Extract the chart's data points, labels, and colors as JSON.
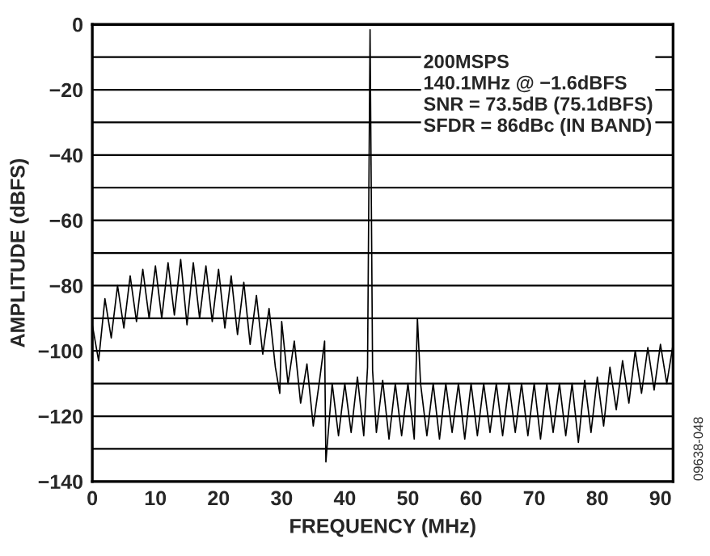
{
  "chart_data": {
    "type": "line",
    "xlabel": "FREQUENCY (MHz)",
    "ylabel": "AMPLITUDE (dBFS)",
    "annotations": [
      "200MSPS\n140.1MHz @ −1.6dBFS\nSNR = 73.5dB (75.1dBFS)\nSFDR = 86dBc (IN BAND)",
      "09638-048"
    ],
    "series": [
      {
        "color": "#000000",
        "x": [
          0,
          1,
          2,
          3,
          4,
          5,
          6,
          7,
          8,
          9,
          10,
          11,
          12,
          13,
          14,
          15,
          16,
          17,
          18,
          19,
          20,
          21,
          22,
          23,
          24,
          25,
          26,
          27,
          28,
          29,
          29.7,
          30,
          31,
          32,
          33,
          34,
          35,
          36,
          36.8,
          37,
          38,
          39,
          40,
          41,
          42,
          43,
          43.6,
          44,
          44.4,
          45,
          46,
          47,
          48,
          49,
          50,
          51,
          51.5,
          52,
          53,
          54,
          55,
          56,
          57,
          58,
          59,
          60,
          61,
          62,
          63,
          64,
          65,
          66,
          67,
          68,
          69,
          70,
          71,
          72,
          73,
          74,
          75,
          76,
          77,
          78,
          79,
          80,
          81,
          82,
          83,
          84,
          85,
          86,
          87,
          88,
          89,
          90,
          91,
          92
        ],
        "values": [
          -92,
          -103,
          -84,
          -96,
          -80,
          -93,
          -77,
          -91,
          -75,
          -90,
          -74,
          -90,
          -73,
          -89,
          -72,
          -92,
          -73,
          -90,
          -74,
          -91,
          -75,
          -93,
          -77,
          -95,
          -79,
          -98,
          -83,
          -101,
          -87,
          -105,
          -113,
          -91,
          -110,
          -97,
          -116,
          -104,
          -123,
          -109,
          -97,
          -134,
          -110,
          -126,
          -110,
          -125,
          -108,
          -126,
          -105,
          -1.6,
          -106,
          -125,
          -109,
          -127,
          -110,
          -126,
          -110,
          -127,
          -90,
          -110,
          -126,
          -110,
          -127,
          -110,
          -125,
          -110,
          -127,
          -110,
          -126,
          -110,
          -125,
          -110,
          -126,
          -110,
          -125,
          -110,
          -126,
          -110,
          -127,
          -110,
          -125,
          -110,
          -126,
          -110,
          -128,
          -109,
          -125,
          -108,
          -123,
          -105,
          -118,
          -103,
          -116,
          -100,
          -113,
          -99,
          -112,
          -98,
          -110,
          -98
        ]
      }
    ],
    "xlim": [
      0,
      92
    ],
    "xticks": [
      0,
      10,
      20,
      30,
      40,
      50,
      60,
      70,
      80,
      90
    ],
    "ylim": [
      -140,
      0
    ],
    "yticks": [
      -140,
      {
        "value": -130,
        "label": null
      },
      -120,
      {
        "value": -110,
        "label": null
      },
      -100,
      {
        "value": -90,
        "label": null
      },
      -80,
      {
        "value": -70,
        "label": null
      },
      -60,
      {
        "value": -50,
        "label": null
      },
      -40,
      {
        "value": -30,
        "label": null
      },
      -20,
      {
        "value": -10,
        "label": null
      },
      0
    ],
    "grid": "y",
    "legend": false,
    "marker": "none",
    "line_style": "solid"
  }
}
